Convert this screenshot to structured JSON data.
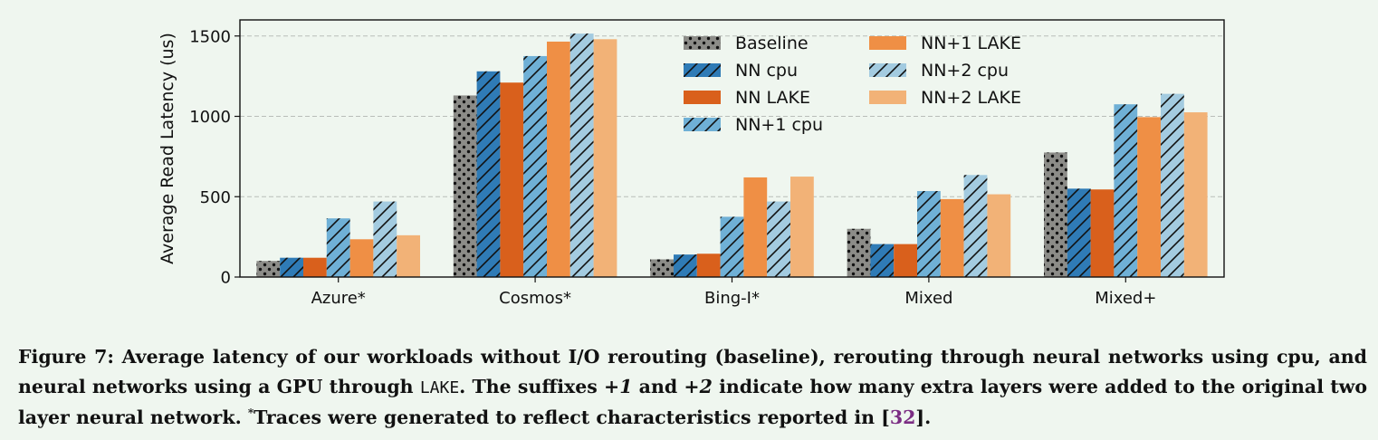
{
  "chart_data": {
    "type": "bar",
    "categories": [
      "Azure*",
      "Cosmos*",
      "Bing-I*",
      "Mixed",
      "Mixed+"
    ],
    "ylabel": "Average Read Latency (us)",
    "ylim": [
      0,
      1600
    ],
    "yticks": [
      0,
      500,
      1000,
      1500
    ],
    "grid": "horizontal-dashed",
    "legend_placement": "top-center",
    "series": [
      {
        "name": "Baseline",
        "color": "#8c8c88",
        "pattern": "dots",
        "values": [
          100,
          1130,
          110,
          300,
          775
        ]
      },
      {
        "name": "NN cpu",
        "color": "#2f7bb6",
        "pattern": "hatch",
        "values": [
          120,
          1280,
          140,
          205,
          550
        ]
      },
      {
        "name": "NN LAKE",
        "color": "#d9601c",
        "pattern": "solid",
        "values": [
          120,
          1210,
          145,
          205,
          545
        ]
      },
      {
        "name": "NN+1 cpu",
        "color": "#6fb0d6",
        "pattern": "hatch",
        "values": [
          365,
          1375,
          375,
          535,
          1075
        ]
      },
      {
        "name": "NN+1 LAKE",
        "color": "#ef8f45",
        "pattern": "solid",
        "values": [
          235,
          1465,
          620,
          485,
          995
        ]
      },
      {
        "name": "NN+2 cpu",
        "color": "#a3cbe0",
        "pattern": "hatch",
        "values": [
          470,
          1515,
          470,
          635,
          1140
        ]
      },
      {
        "name": "NN+2 LAKE",
        "color": "#f2b277",
        "pattern": "solid",
        "values": [
          260,
          1480,
          625,
          515,
          1025
        ]
      }
    ]
  },
  "caption": {
    "fig_label": "Figure 7:",
    "part1": " Average latency of our workloads without I/O rerouting (baseline), rerouting through neural networks using cpu, and neural networks using a GPU through ",
    "lake": "LAKE",
    "part2": ". The suffixes ",
    "plus1": "+1",
    "part3": " and ",
    "plus2": "+2",
    "part4": " indicate how many extra layers were added to the original two layer neural network. ",
    "star": "*",
    "part5": "Traces were generated to reflect characteristics reported in [",
    "ref": "32",
    "part6": "]."
  }
}
